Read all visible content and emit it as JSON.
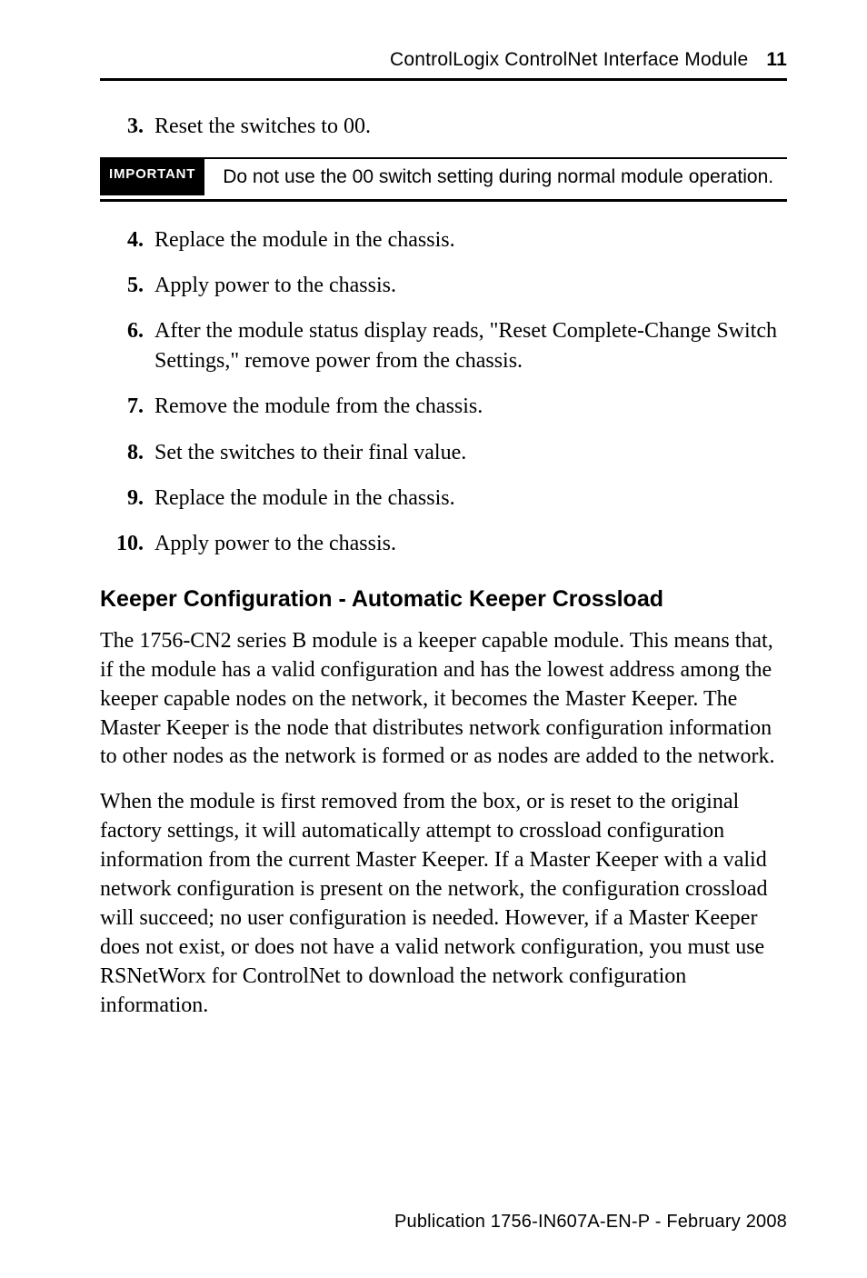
{
  "header": {
    "title": "ControlLogix ControlNet Interface Module",
    "page_number": "11"
  },
  "step3": {
    "num": "3.",
    "text": "Reset the switches to 00."
  },
  "important": {
    "label": "IMPORTANT",
    "text": "Do not use the 00 switch setting during normal module operation."
  },
  "step4": {
    "num": "4.",
    "text": "Replace the module in the chassis."
  },
  "step5": {
    "num": "5.",
    "text": "Apply power to the chassis."
  },
  "step6": {
    "num": "6.",
    "text": "After the module status display reads, \"Reset Complete-Change Switch Settings,\" remove power from the chassis."
  },
  "step7": {
    "num": "7.",
    "text": "Remove the module from the chassis."
  },
  "step8": {
    "num": "8.",
    "text": "Set the switches to their final value."
  },
  "step9": {
    "num": "9.",
    "text": "Replace the module in the chassis."
  },
  "step10": {
    "num": "10.",
    "text": "Apply power to the chassis."
  },
  "section_heading": "Keeper Configuration - Automatic Keeper Crossload",
  "para1": "The 1756-CN2 series B module is a keeper capable module. This means that, if the module has a valid configuration and has the lowest address among the keeper capable nodes on the network, it becomes the Master Keeper. The Master Keeper is the node that distributes network configuration information to other nodes as the network is formed or as nodes are added to the network.",
  "para2": "When the module is first removed from the box, or is reset to the original factory settings, it will automatically attempt to crossload configuration information from the current Master Keeper. If a Master Keeper with a valid network configuration is present on the network, the configuration crossload will succeed; no user configuration is needed. However, if a Master Keeper does not exist, or does not have a valid network configuration, you must use RSNetWorx for ControlNet to download the network configuration information.",
  "footer": "Publication  1756-IN607A-EN-P - February 2008"
}
